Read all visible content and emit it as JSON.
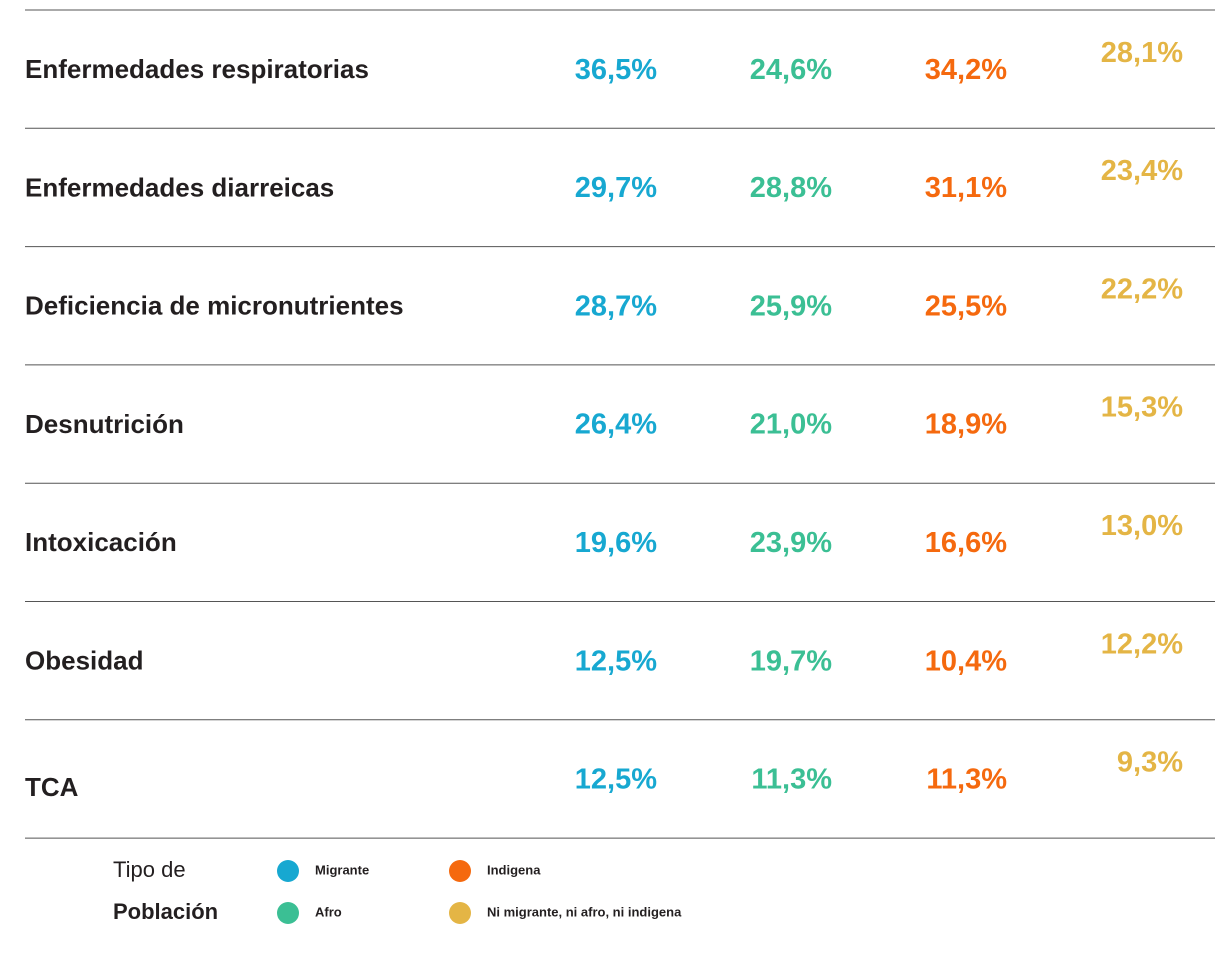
{
  "table": {
    "rows": [
      [
        "Enfermedades respiratorias",
        "36,5%",
        "24,6%",
        "34,2%",
        "28,1%"
      ],
      [
        "Enfermedades diarreicas",
        "29,7%",
        "28,8%",
        "31,1%",
        "23,4%"
      ],
      [
        "Deficiencia de micronutrientes",
        "28,7%",
        "25,9%",
        "25,5%",
        "22,2%"
      ],
      [
        "Desnutrición",
        "26,4%",
        "21,0%",
        "18,9%",
        "15,3%"
      ],
      [
        "Intoxicación",
        "19,6%",
        "23,9%",
        "16,6%",
        "13,0%"
      ],
      [
        "Obesidad",
        "12,5%",
        "19,7%",
        "10,4%",
        "12,2%"
      ],
      [
        "TCA",
        "12,5%",
        "11,3%",
        "11,3%",
        "9,3%"
      ]
    ]
  },
  "legend": {
    "title_line1": "Tipo de",
    "title_line2": "Población",
    "groups": [
      {
        "name": "Migrante",
        "color": "#17a8d1"
      },
      {
        "name": "Afro",
        "color": "#3bbf94"
      },
      {
        "name": "Indigena",
        "color": "#f5690e"
      },
      {
        "name": "Ni migrante, ni afro, ni indigena",
        "color": "#e4b545"
      }
    ]
  }
}
